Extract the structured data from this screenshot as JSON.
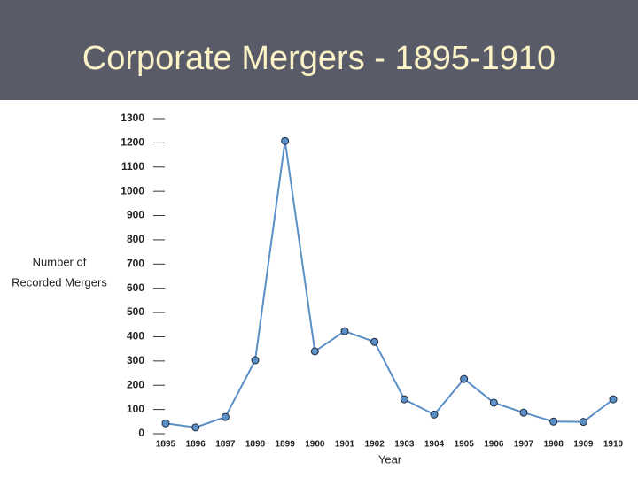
{
  "chart_data": {
    "type": "line",
    "title": "Corporate Mergers - 1895-1910",
    "xlabel": "Year",
    "ylabel": [
      "Number of",
      "Recorded Mergers"
    ],
    "categories": [
      "1895",
      "1896",
      "1897",
      "1898",
      "1899",
      "1900",
      "1901",
      "1902",
      "1903",
      "1904",
      "1905",
      "1906",
      "1907",
      "1908",
      "1909",
      "1910"
    ],
    "series": [
      {
        "name": "Number of Recorded Mergers",
        "color": "#5b8fc7",
        "values": [
          43,
          26,
          69,
          303,
          1208,
          340,
          423,
          379,
          142,
          79,
          226,
          128,
          87,
          50,
          49,
          142
        ]
      }
    ],
    "ylim": [
      0,
      1300
    ],
    "yticks": [
      0,
      100,
      200,
      300,
      400,
      500,
      600,
      700,
      800,
      900,
      1000,
      1100,
      1200,
      1300
    ],
    "grid": false
  }
}
